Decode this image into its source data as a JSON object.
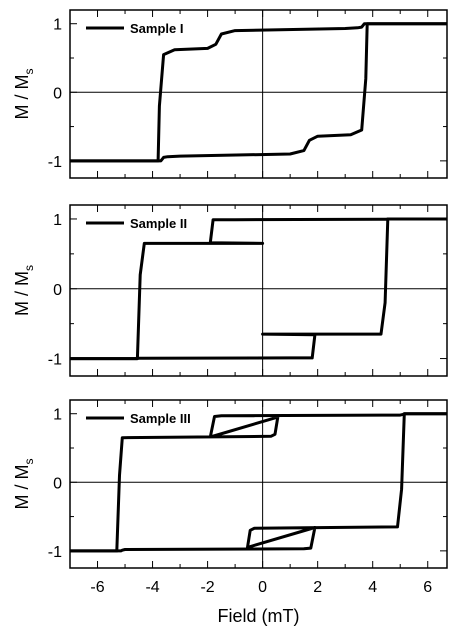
{
  "chart_data": [
    {
      "type": "line",
      "xlim": [
        -7,
        6.7
      ],
      "ylim": [
        -1.25,
        1.2
      ],
      "yticks": [
        -1,
        0,
        1
      ],
      "ytick_labels": [
        "-1",
        "0",
        "1"
      ],
      "ylabel_main": "M / M",
      "ylabel_sub": "s",
      "legend": "top-left",
      "series": [
        {
          "name": "Sample I",
          "color": "#000000",
          "branches": [
            {
              "x": [
                -7,
                -3.8,
                -3.75,
                -3.6,
                -3.2,
                -2.0,
                -1.7,
                -1.5,
                -1.0,
                3.0,
                3.45,
                3.6,
                3.7,
                6.7
              ],
              "y": [
                -1,
                -1,
                -0.2,
                0.55,
                0.62,
                0.64,
                0.7,
                0.85,
                0.9,
                0.93,
                0.94,
                0.95,
                1.0,
                1.0
              ]
            },
            {
              "x": [
                6.7,
                3.8,
                3.75,
                3.6,
                3.2,
                2.0,
                1.7,
                1.5,
                1.0,
                -3.0,
                -3.45,
                -3.6,
                -3.7,
                -7
              ],
              "y": [
                1,
                1,
                0.2,
                -0.55,
                -0.62,
                -0.64,
                -0.7,
                -0.85,
                -0.9,
                -0.93,
                -0.94,
                -0.95,
                -1.0,
                -1.0
              ]
            }
          ]
        }
      ]
    },
    {
      "type": "line",
      "xlim": [
        -7,
        6.7
      ],
      "ylim": [
        -1.25,
        1.2
      ],
      "yticks": [
        -1,
        0,
        1
      ],
      "ytick_labels": [
        "-1",
        "0",
        "1"
      ],
      "ylabel_main": "M / M",
      "ylabel_sub": "s",
      "legend": "top-left",
      "series": [
        {
          "name": "Sample II",
          "color": "#000000",
          "branches": [
            {
              "x": [
                -7,
                -4.55,
                -4.45,
                -4.3,
                0,
                -1.9,
                -1.8,
                -1.0,
                4.4,
                4.5,
                4.55,
                6.7
              ],
              "y": [
                -1,
                -1,
                0.2,
                0.65,
                0.65,
                0.66,
                0.99,
                0.99,
                0.995,
                0.995,
                1.0,
                1.0
              ]
            },
            {
              "x": [
                6.7,
                4.55,
                4.45,
                4.3,
                0,
                1.9,
                1.8,
                1.0,
                -4.4,
                -4.5,
                -4.55,
                -7
              ],
              "y": [
                1,
                1,
                -0.2,
                -0.65,
                -0.65,
                -0.66,
                -0.99,
                -0.99,
                -0.995,
                -0.995,
                -1.0,
                -1.0
              ]
            }
          ]
        }
      ]
    },
    {
      "type": "line",
      "xlim": [
        -7,
        6.7
      ],
      "ylim": [
        -1.25,
        1.2
      ],
      "yticks": [
        -1,
        0,
        1
      ],
      "ytick_labels": [
        "-1",
        "0",
        "1"
      ],
      "xticks": [
        -6,
        -4,
        -2,
        0,
        2,
        4,
        6
      ],
      "xtick_labels": [
        "-6",
        "-4",
        "-2",
        "0",
        "2",
        "4",
        "6"
      ],
      "xlabel": "Field (mT)",
      "ylabel_main": "M / M",
      "ylabel_sub": "s",
      "legend": "top-left",
      "series": [
        {
          "name": "Sample III",
          "color": "#000000",
          "branches": [
            {
              "x": [
                -7,
                -5.3,
                -5.2,
                -5.1,
                0.3,
                0.45,
                0.55,
                -1.9,
                -1.75,
                -1.5,
                5.0,
                5.1,
                5.15,
                6.7
              ],
              "y": [
                -1,
                -1,
                0.1,
                0.65,
                0.67,
                0.7,
                0.95,
                0.66,
                0.96,
                0.97,
                0.98,
                0.99,
                1.0,
                1.0
              ]
            },
            {
              "x": [
                6.7,
                5.15,
                5.05,
                4.9,
                -0.3,
                -0.45,
                -0.55,
                1.9,
                1.75,
                1.5,
                -5.0,
                -5.1,
                -5.15,
                -7
              ],
              "y": [
                1,
                1,
                -0.1,
                -0.65,
                -0.67,
                -0.7,
                -0.95,
                -0.66,
                -0.96,
                -0.97,
                -0.98,
                -0.99,
                -1.0,
                -1.0
              ]
            }
          ]
        }
      ]
    }
  ]
}
